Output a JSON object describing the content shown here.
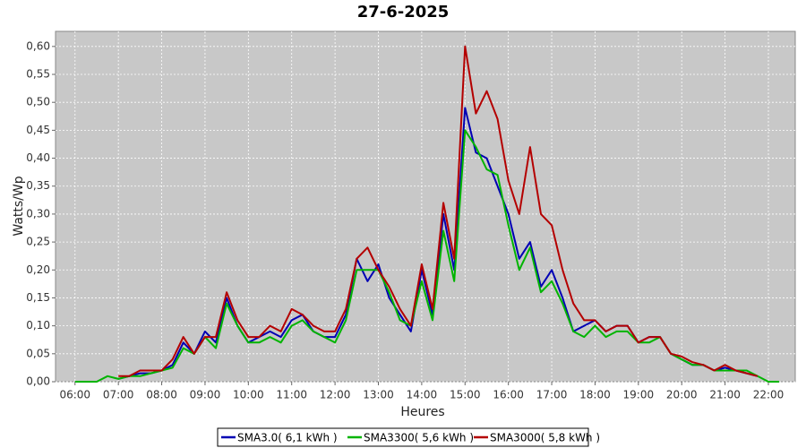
{
  "chart_data": {
    "type": "line",
    "title": "27-6-2025",
    "x_label": "Heures",
    "y_label": "Watts/Wp",
    "x": [
      6,
      6.25,
      6.5,
      6.75,
      7,
      7.25,
      7.5,
      7.75,
      8,
      8.25,
      8.5,
      8.75,
      9,
      9.25,
      9.5,
      9.75,
      10,
      10.25,
      10.5,
      10.75,
      11,
      11.25,
      11.5,
      11.75,
      12,
      12.25,
      12.5,
      12.75,
      13,
      13.25,
      13.5,
      13.75,
      14,
      14.25,
      14.5,
      14.75,
      15,
      15.25,
      15.5,
      15.75,
      16,
      16.25,
      16.5,
      16.75,
      17,
      17.25,
      17.5,
      17.75,
      18,
      18.25,
      18.5,
      18.75,
      19,
      19.25,
      19.5,
      19.75,
      20,
      20.25,
      20.5,
      20.75,
      21,
      21.25,
      21.5,
      21.75,
      22,
      22.25
    ],
    "series": [
      {
        "name": "SMA3.0( 6,1 kWh )",
        "color": "#0000b4",
        "values": [
          null,
          null,
          null,
          null,
          0.005,
          0.01,
          0.015,
          0.015,
          0.02,
          0.03,
          0.07,
          0.05,
          0.09,
          0.07,
          0.15,
          0.1,
          0.07,
          0.08,
          0.09,
          0.08,
          0.11,
          0.12,
          0.09,
          0.08,
          0.08,
          0.12,
          0.22,
          0.18,
          0.21,
          0.15,
          0.12,
          0.09,
          0.2,
          0.12,
          0.3,
          0.2,
          0.49,
          0.41,
          0.4,
          0.35,
          0.3,
          0.22,
          0.25,
          0.17,
          0.2,
          0.15,
          0.09,
          0.1,
          0.11,
          0.09,
          0.1,
          0.1,
          0.07,
          0.08,
          0.08,
          0.05,
          0.04,
          0.03,
          0.03,
          0.02,
          0.025,
          0.02,
          0.015,
          0.01,
          null,
          null
        ]
      },
      {
        "name": "SMA3300( 5,6 kWh )",
        "color": "#00b400",
        "values": [
          0,
          0,
          0,
          0.01,
          0.005,
          0.01,
          0.01,
          0.015,
          0.02,
          0.025,
          0.06,
          0.05,
          0.08,
          0.06,
          0.14,
          0.1,
          0.07,
          0.07,
          0.08,
          0.07,
          0.1,
          0.11,
          0.09,
          0.08,
          0.07,
          0.11,
          0.2,
          0.2,
          0.2,
          0.16,
          0.11,
          0.1,
          0.18,
          0.11,
          0.27,
          0.18,
          0.45,
          0.42,
          0.38,
          0.37,
          0.28,
          0.2,
          0.24,
          0.16,
          0.18,
          0.14,
          0.09,
          0.08,
          0.1,
          0.08,
          0.09,
          0.09,
          0.07,
          0.07,
          0.08,
          0.05,
          0.04,
          0.03,
          0.03,
          0.02,
          0.02,
          0.02,
          0.02,
          0.01,
          0,
          0
        ]
      },
      {
        "name": "SMA3000( 5,8 kWh )",
        "color": "#b40000",
        "values": [
          null,
          null,
          null,
          null,
          0.01,
          0.01,
          0.02,
          0.02,
          0.02,
          0.04,
          0.08,
          0.05,
          0.08,
          0.08,
          0.16,
          0.11,
          0.08,
          0.08,
          0.1,
          0.09,
          0.13,
          0.12,
          0.1,
          0.09,
          0.09,
          0.13,
          0.22,
          0.24,
          0.2,
          0.17,
          0.13,
          0.1,
          0.21,
          0.13,
          0.32,
          0.22,
          0.6,
          0.48,
          0.52,
          0.47,
          0.36,
          0.3,
          0.42,
          0.3,
          0.28,
          0.2,
          0.14,
          0.11,
          0.11,
          0.09,
          0.1,
          0.1,
          0.07,
          0.08,
          0.08,
          0.05,
          0.045,
          0.035,
          0.03,
          0.02,
          0.03,
          0.02,
          0.015,
          0.01,
          null,
          null
        ]
      }
    ],
    "xlim": [
      5.55,
      22.62
    ],
    "xticks": [
      {
        "value": 6,
        "label": "06:00"
      },
      {
        "value": 7,
        "label": "07:00"
      },
      {
        "value": 8,
        "label": "08:00"
      },
      {
        "value": 9,
        "label": "09:00"
      },
      {
        "value": 10,
        "label": "10:00"
      },
      {
        "value": 11,
        "label": "11:00"
      },
      {
        "value": 12,
        "label": "12:00"
      },
      {
        "value": 13,
        "label": "13:00"
      },
      {
        "value": 14,
        "label": "14:00"
      },
      {
        "value": 15,
        "label": "15:00"
      },
      {
        "value": 16,
        "label": "16:00"
      },
      {
        "value": 17,
        "label": "17:00"
      },
      {
        "value": 18,
        "label": "18:00"
      },
      {
        "value": 19,
        "label": "19:00"
      },
      {
        "value": 20,
        "label": "20:00"
      },
      {
        "value": 21,
        "label": "21:00"
      },
      {
        "value": 22,
        "label": "22:00"
      }
    ],
    "ylim": [
      0,
      0.627
    ],
    "yticks": [
      {
        "value": 0,
        "label": "0,00"
      },
      {
        "value": 0.05,
        "label": "0,05"
      },
      {
        "value": 0.1,
        "label": "0,10"
      },
      {
        "value": 0.15,
        "label": "0,15"
      },
      {
        "value": 0.2,
        "label": "0,20"
      },
      {
        "value": 0.25,
        "label": "0,25"
      },
      {
        "value": 0.3,
        "label": "0,30"
      },
      {
        "value": 0.35,
        "label": "0,35"
      },
      {
        "value": 0.4,
        "label": "0,40"
      },
      {
        "value": 0.45,
        "label": "0,45"
      },
      {
        "value": 0.5,
        "label": "0,50"
      },
      {
        "value": 0.55,
        "label": "0,55"
      },
      {
        "value": 0.6,
        "label": "0,60"
      }
    ],
    "grid": true,
    "legend": "bottom"
  }
}
